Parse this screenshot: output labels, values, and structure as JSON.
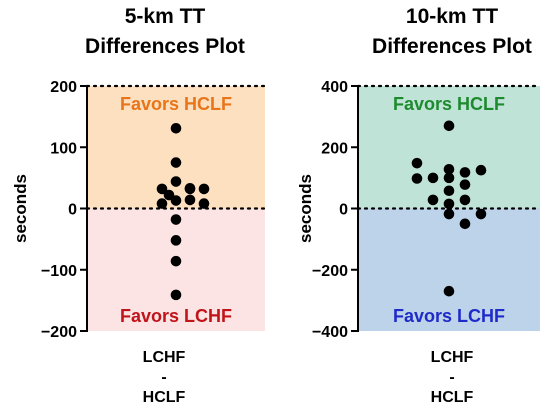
{
  "chart_data": [
    {
      "type": "scatter",
      "title_lines": [
        "5-km TT",
        "Differences Plot"
      ],
      "ylabel": "seconds",
      "xlabel_lines": [
        "LCHF",
        "-",
        "HCLF"
      ],
      "ylim": [
        -200,
        200
      ],
      "yticks": [
        -200,
        -100,
        0,
        100,
        200
      ],
      "ytick_labels": [
        "−200",
        "−100",
        "0",
        "100",
        "200"
      ],
      "dotted_lines": [
        0,
        200
      ],
      "regions": [
        {
          "name": "Favors HCLF",
          "from": 0,
          "to": 200,
          "fill": "#fde0c0",
          "text_color": "#e8751a",
          "label_position": "top"
        },
        {
          "name": "Favors LCHF",
          "from": -200,
          "to": 0,
          "fill": "#fde4e4",
          "text_color": "#c0141a",
          "label_position": "bottom"
        }
      ],
      "points": [
        {
          "x": 0,
          "y": 131
        },
        {
          "x": 0,
          "y": 75
        },
        {
          "x": 0,
          "y": 44
        },
        {
          "x": -1,
          "y": 32
        },
        {
          "x": 1,
          "y": 32
        },
        {
          "x": 1,
          "y": 33
        },
        {
          "x": 2,
          "y": 32
        },
        {
          "x": -0.5,
          "y": 22
        },
        {
          "x": 0,
          "y": 13
        },
        {
          "x": 1,
          "y": 14
        },
        {
          "x": -1,
          "y": 8
        },
        {
          "x": 2,
          "y": 8
        },
        {
          "x": 0,
          "y": -18
        },
        {
          "x": 0,
          "y": -52
        },
        {
          "x": 0,
          "y": -86
        },
        {
          "x": 0,
          "y": -141
        }
      ],
      "colors": {
        "point": "#000000"
      }
    },
    {
      "type": "scatter",
      "title_lines": [
        "10-km TT",
        "Differences Plot"
      ],
      "ylabel": "seconds",
      "xlabel_lines": [
        "LCHF",
        "-",
        "HCLF"
      ],
      "ylim": [
        -400,
        400
      ],
      "yticks": [
        -400,
        -200,
        0,
        200,
        400
      ],
      "ytick_labels": [
        "−400",
        "−200",
        "0",
        "200",
        "400"
      ],
      "dotted_lines": [
        0,
        400
      ],
      "regions": [
        {
          "name": "Favors HCLF",
          "from": 0,
          "to": 400,
          "fill": "#bfe3d6",
          "text_color": "#1e8a2e",
          "label_position": "top"
        },
        {
          "name": "Favors LCHF",
          "from": -400,
          "to": 0,
          "fill": "#bdd3ea",
          "text_color": "#1f2bc8",
          "label_position": "bottom"
        }
      ],
      "points": [
        {
          "x": 0,
          "y": 270
        },
        {
          "x": -2,
          "y": 148
        },
        {
          "x": 2,
          "y": 125
        },
        {
          "x": 0,
          "y": 128
        },
        {
          "x": 1,
          "y": 118
        },
        {
          "x": 0,
          "y": 100
        },
        {
          "x": -2,
          "y": 98
        },
        {
          "x": -1,
          "y": 100
        },
        {
          "x": 1,
          "y": 78
        },
        {
          "x": 0,
          "y": 58
        },
        {
          "x": 0,
          "y": 15
        },
        {
          "x": 1,
          "y": 28
        },
        {
          "x": -1,
          "y": 28
        },
        {
          "x": 0,
          "y": -18
        },
        {
          "x": 2,
          "y": -18
        },
        {
          "x": 1,
          "y": -50
        },
        {
          "x": 0,
          "y": -270
        }
      ],
      "colors": {
        "point": "#000000"
      }
    }
  ]
}
